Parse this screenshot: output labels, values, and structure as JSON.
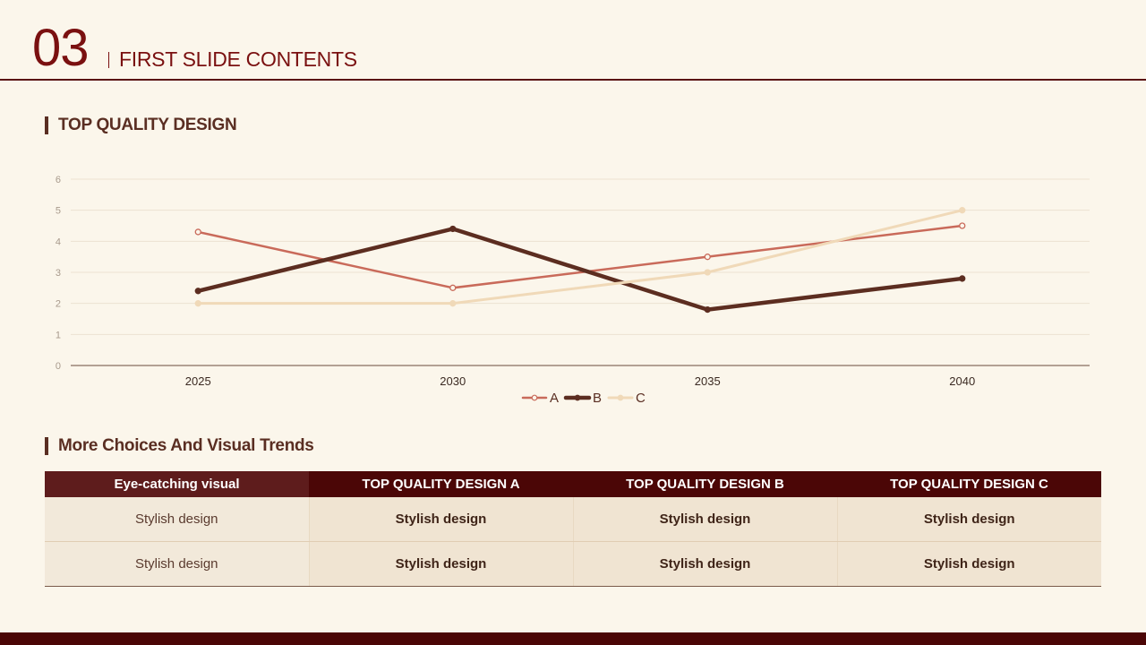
{
  "header": {
    "number": "03",
    "title": "FIRST SLIDE CONTENTS"
  },
  "section1": {
    "title": "TOP QUALITY DESIGN"
  },
  "section2": {
    "title": "More Choices And Visual Trends"
  },
  "colors": {
    "A": "#c96a5a",
    "B": "#5c2d20",
    "C": "#f0d9b8",
    "accent": "#7a1010",
    "dark": "#4b0606"
  },
  "chart_data": {
    "type": "line",
    "categories": [
      "2025",
      "2030",
      "2035",
      "2040"
    ],
    "series": [
      {
        "name": "A",
        "values": [
          4.3,
          2.5,
          3.5,
          4.5
        ]
      },
      {
        "name": "B",
        "values": [
          2.4,
          4.4,
          1.8,
          2.8
        ]
      },
      {
        "name": "C",
        "values": [
          2.0,
          2.0,
          3.0,
          5.0
        ]
      }
    ],
    "ylim": [
      0,
      6
    ],
    "yticks": [
      0,
      1,
      2,
      3,
      4,
      5,
      6
    ],
    "grid": true,
    "legend": "bottom"
  },
  "table": {
    "headers": [
      "Eye-catching visual",
      "TOP QUALITY DESIGN A",
      "TOP QUALITY DESIGN B",
      "TOP QUALITY DESIGN C"
    ],
    "rows": [
      [
        "Stylish design",
        "Stylish design",
        "Stylish design",
        "Stylish design"
      ],
      [
        "Stylish design",
        "Stylish design",
        "Stylish design",
        "Stylish design"
      ]
    ]
  }
}
